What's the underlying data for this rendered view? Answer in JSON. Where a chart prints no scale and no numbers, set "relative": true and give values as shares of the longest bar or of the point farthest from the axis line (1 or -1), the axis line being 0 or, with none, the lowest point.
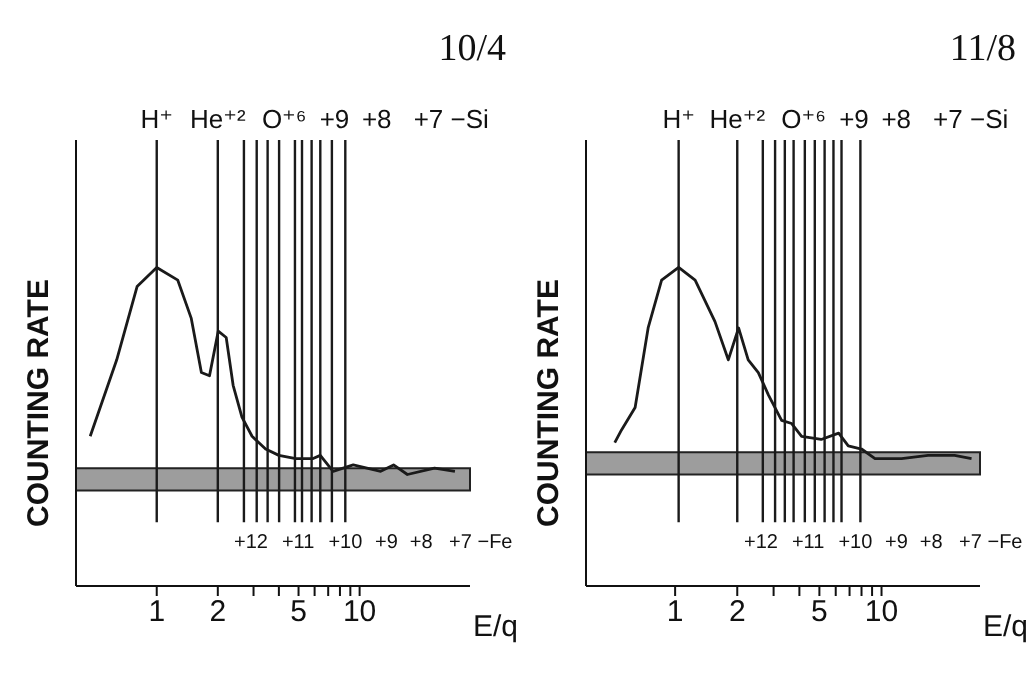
{
  "chart_data": [
    {
      "type": "line",
      "title": "10/4",
      "xlabel": "E/q",
      "ylabel": "COUNTING RATE",
      "relative": true,
      "log": "x",
      "color": "#1a1a1a",
      "line_style": "solid",
      "grid": false,
      "legend": false,
      "x": [
        0.47,
        0.635,
        0.8,
        1.0,
        1.27,
        1.48,
        1.66,
        1.82,
        2.01,
        2.2,
        2.38,
        2.63,
        2.95,
        3.44,
        4.0,
        4.85,
        5.9,
        6.4,
        7.4,
        9.3,
        12.7,
        14.7,
        17.2,
        23.4,
        29.5
      ],
      "values": [
        0.47,
        0.71,
        0.94,
        1.0,
        0.96,
        0.84,
        0.67,
        0.66,
        0.8,
        0.78,
        0.63,
        0.53,
        0.47,
        0.43,
        0.41,
        0.4,
        0.4,
        0.41,
        0.36,
        0.38,
        0.36,
        0.38,
        0.35,
        0.37,
        0.36
      ],
      "xlim": [
        0.4,
        35
      ],
      "xticks": [
        1,
        2,
        {
          "value": 3,
          "label": null
        },
        {
          "value": 4,
          "label": null
        },
        5,
        {
          "value": 6,
          "label": null
        },
        {
          "value": 7,
          "label": null
        },
        {
          "value": 8,
          "label": null
        },
        {
          "value": 9,
          "label": null
        },
        10
      ],
      "bands": [
        {
          "axis": "y",
          "from": 0.3,
          "to": 0.37,
          "color": "#8c8c8c"
        }
      ],
      "ref_lines": [
        {
          "axis": "x",
          "value": 1,
          "color": "#1a1a1a"
        },
        {
          "axis": "x",
          "value": 2,
          "color": "#1a1a1a"
        },
        {
          "axis": "x",
          "value": 2.69,
          "color": "#1a1a1a"
        },
        {
          "axis": "x",
          "value": 3.11,
          "color": "#1a1a1a"
        },
        {
          "axis": "x",
          "value": 3.52,
          "color": "#1a1a1a"
        },
        {
          "axis": "x",
          "value": 4.01,
          "color": "#1a1a1a"
        },
        {
          "axis": "x",
          "value": 4.8,
          "color": "#1a1a1a"
        },
        {
          "axis": "x",
          "value": 5.2,
          "color": "#1a1a1a"
        },
        {
          "axis": "x",
          "value": 5.8,
          "color": "#1a1a1a"
        },
        {
          "axis": "x",
          "value": 6.4,
          "color": "#1a1a1a"
        },
        {
          "axis": "x",
          "value": 7.3,
          "color": "#1a1a1a"
        },
        {
          "axis": "x",
          "value": 8.5,
          "color": "#1a1a1a"
        }
      ],
      "annotations": [
        "H⁺",
        "He⁺²",
        "O⁺⁶",
        "+9",
        "+8",
        "+7 −Si",
        "+12",
        "+11",
        "+10",
        "+9",
        "+8",
        "+7 −Fe"
      ]
    },
    {
      "type": "line",
      "title": "11/8",
      "xlabel": "E/q",
      "ylabel": "COUNTING RATE",
      "relative": true,
      "log": "x",
      "color": "#1a1a1a",
      "line_style": "solid",
      "grid": false,
      "legend": false,
      "x": [
        0.51,
        0.55,
        0.64,
        0.74,
        0.86,
        1.04,
        1.25,
        1.56,
        1.81,
        2.03,
        2.26,
        2.53,
        2.83,
        3.28,
        3.67,
        4.1,
        5.1,
        6.2,
        6.9,
        8.0,
        9.3,
        12.5,
        16.8,
        22.6,
        27.3
      ],
      "values": [
        0.45,
        0.49,
        0.56,
        0.81,
        0.96,
        1.0,
        0.96,
        0.83,
        0.71,
        0.81,
        0.71,
        0.67,
        0.6,
        0.52,
        0.51,
        0.47,
        0.46,
        0.48,
        0.44,
        0.43,
        0.4,
        0.4,
        0.41,
        0.41,
        0.4
      ],
      "xlim": [
        0.37,
        30
      ],
      "xticks": [
        1,
        2,
        {
          "value": 3,
          "label": null
        },
        {
          "value": 4,
          "label": null
        },
        5,
        {
          "value": 6,
          "label": null
        },
        {
          "value": 7,
          "label": null
        },
        {
          "value": 8,
          "label": null
        },
        {
          "value": 9,
          "label": null
        },
        10
      ],
      "bands": [
        {
          "axis": "y",
          "from": 0.35,
          "to": 0.42,
          "color": "#8c8c8c"
        }
      ],
      "ref_lines": [
        {
          "axis": "x",
          "value": 1.04,
          "color": "#1a1a1a"
        },
        {
          "axis": "x",
          "value": 2.0,
          "color": "#1a1a1a"
        },
        {
          "axis": "x",
          "value": 2.66,
          "color": "#1a1a1a"
        },
        {
          "axis": "x",
          "value": 3.05,
          "color": "#1a1a1a"
        },
        {
          "axis": "x",
          "value": 3.4,
          "color": "#1a1a1a"
        },
        {
          "axis": "x",
          "value": 3.75,
          "color": "#1a1a1a"
        },
        {
          "axis": "x",
          "value": 4.25,
          "color": "#1a1a1a"
        },
        {
          "axis": "x",
          "value": 4.75,
          "color": "#1a1a1a"
        },
        {
          "axis": "x",
          "value": 5.3,
          "color": "#1a1a1a"
        },
        {
          "axis": "x",
          "value": 5.85,
          "color": "#1a1a1a"
        },
        {
          "axis": "x",
          "value": 6.4,
          "color": "#1a1a1a"
        },
        {
          "axis": "x",
          "value": 7.9,
          "color": "#1a1a1a"
        }
      ],
      "annotations": [
        "H⁺",
        "He⁺²",
        "O⁺⁶",
        "+9",
        "+8",
        "+7 −Si",
        "+12",
        "+11",
        "+10",
        "+9",
        "+8",
        "+7 −Fe"
      ]
    }
  ]
}
